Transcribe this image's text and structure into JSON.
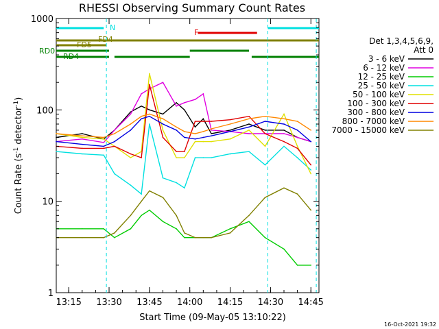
{
  "chart_data": {
    "type": "line",
    "title": "RHESSI Observing Summary Count Rates",
    "xlabel": "Start Time (09-May-05 13:10:22)",
    "ylabel_main": "Count Rate (s",
    "ylabel_sup1": "-1",
    "ylabel_mid": " detector",
    "ylabel_sup2": "-1",
    "ylabel_end": ")",
    "yscale": "log",
    "ylim": [
      1,
      1000
    ],
    "xlim": [
      "13:10:22",
      "14:48:00"
    ],
    "x_ticks": [
      "13:15",
      "13:30",
      "13:45",
      "14:00",
      "14:15",
      "14:30",
      "14:45"
    ],
    "y_ticks": [
      "1",
      "10",
      "100",
      "1000"
    ],
    "legend_header": [
      "Det 1,3,4,5,6,9,",
      "Att 0"
    ],
    "series": [
      {
        "name": "3 - 6 keV",
        "color": "#000000",
        "x": [
          "13:10",
          "13:20",
          "13:28",
          "13:32",
          "13:38",
          "13:42",
          "13:45",
          "13:50",
          "13:55",
          "13:58",
          "14:02",
          "14:05",
          "14:08",
          "14:15",
          "14:22",
          "14:28",
          "14:35",
          "14:40",
          "14:45"
        ],
        "y": [
          50,
          55,
          48,
          60,
          95,
          110,
          100,
          90,
          120,
          100,
          65,
          80,
          55,
          60,
          70,
          60,
          60,
          50,
          45
        ]
      },
      {
        "name": "6 - 12 keV",
        "color": "#e000e0",
        "x": [
          "13:10",
          "13:20",
          "13:28",
          "13:32",
          "13:38",
          "13:42",
          "13:45",
          "13:50",
          "13:55",
          "13:58",
          "14:02",
          "14:05",
          "14:08",
          "14:15",
          "14:22",
          "14:28",
          "14:35",
          "14:40",
          "14:45"
        ],
        "y": [
          45,
          48,
          44,
          60,
          90,
          150,
          170,
          200,
          110,
          120,
          130,
          150,
          60,
          58,
          55,
          55,
          55,
          50,
          45
        ]
      },
      {
        "name": "12 - 25 keV",
        "color": "#00cc00",
        "x": [
          "13:10",
          "13:20",
          "13:28",
          "13:32",
          "13:38",
          "13:42",
          "13:45",
          "13:50",
          "13:55",
          "13:58",
          "14:02",
          "14:05",
          "14:08",
          "14:15",
          "14:22",
          "14:28",
          "14:35",
          "14:40",
          "14:45"
        ],
        "y": [
          5,
          5,
          5,
          4,
          5,
          7,
          8,
          6,
          5,
          4,
          4,
          4,
          4,
          5,
          6,
          4,
          3,
          2,
          2
        ]
      },
      {
        "name": "25 - 50 keV",
        "color": "#00e0e0",
        "x": [
          "13:10",
          "13:20",
          "13:28",
          "13:32",
          "13:38",
          "13:42",
          "13:45",
          "13:50",
          "13:55",
          "13:58",
          "14:02",
          "14:05",
          "14:08",
          "14:15",
          "14:22",
          "14:28",
          "14:35",
          "14:40",
          "14:45"
        ],
        "y": [
          35,
          33,
          32,
          20,
          15,
          12,
          70,
          18,
          16,
          14,
          30,
          30,
          30,
          33,
          35,
          25,
          40,
          30,
          22
        ]
      },
      {
        "name": "50 - 100 keV",
        "color": "#e0e000",
        "x": [
          "13:10",
          "13:20",
          "13:28",
          "13:32",
          "13:38",
          "13:42",
          "13:45",
          "13:50",
          "13:55",
          "13:58",
          "14:02",
          "14:05",
          "14:08",
          "14:15",
          "14:22",
          "14:28",
          "14:35",
          "14:40",
          "14:45"
        ],
        "y": [
          55,
          50,
          48,
          40,
          30,
          35,
          250,
          60,
          30,
          30,
          45,
          45,
          45,
          48,
          60,
          40,
          90,
          40,
          20
        ]
      },
      {
        "name": "100 - 300 keV",
        "color": "#e00000",
        "x": [
          "13:10",
          "13:20",
          "13:28",
          "13:32",
          "13:38",
          "13:42",
          "13:45",
          "13:50",
          "13:55",
          "13:58",
          "14:02",
          "14:05",
          "14:08",
          "14:15",
          "14:22",
          "14:28",
          "14:35",
          "14:40",
          "14:45"
        ],
        "y": [
          40,
          38,
          38,
          40,
          33,
          30,
          190,
          50,
          35,
          35,
          75,
          75,
          75,
          78,
          85,
          55,
          45,
          38,
          25
        ]
      },
      {
        "name": "300 - 800 keV",
        "color": "#0000e0",
        "x": [
          "13:10",
          "13:20",
          "13:28",
          "13:32",
          "13:38",
          "13:42",
          "13:45",
          "13:50",
          "13:55",
          "13:58",
          "14:02",
          "14:05",
          "14:08",
          "14:15",
          "14:22",
          "14:28",
          "14:35",
          "14:40",
          "14:45"
        ],
        "y": [
          45,
          42,
          40,
          45,
          60,
          80,
          85,
          70,
          60,
          50,
          48,
          50,
          52,
          58,
          65,
          75,
          70,
          60,
          45
        ]
      },
      {
        "name": "800 - 7000 keV",
        "color": "#ff8800",
        "x": [
          "13:10",
          "13:20",
          "13:28",
          "13:32",
          "13:38",
          "13:42",
          "13:45",
          "13:50",
          "13:55",
          "13:58",
          "14:02",
          "14:05",
          "14:08",
          "14:15",
          "14:22",
          "14:28",
          "14:35",
          "14:40",
          "14:45"
        ],
        "y": [
          55,
          52,
          50,
          55,
          70,
          85,
          90,
          80,
          65,
          58,
          55,
          58,
          62,
          70,
          80,
          85,
          80,
          75,
          60
        ]
      },
      {
        "name": "7000 - 15000 keV",
        "color": "#808000",
        "x": [
          "13:10",
          "13:20",
          "13:28",
          "13:32",
          "13:38",
          "13:42",
          "13:45",
          "13:50",
          "13:55",
          "13:58",
          "14:02",
          "14:05",
          "14:08",
          "14:15",
          "14:22",
          "14:28",
          "14:35",
          "14:40",
          "14:45"
        ],
        "y": [
          4,
          4,
          4,
          4.5,
          7,
          10,
          13,
          11,
          7,
          4.5,
          4,
          4,
          4,
          4.5,
          7,
          11,
          14,
          12,
          8
        ]
      }
    ],
    "flag_bars": [
      {
        "label": "N",
        "color": "#00e0e0",
        "segments": [
          [
            "13:10",
            "13:28"
          ],
          [
            "14:29",
            "14:48"
          ]
        ]
      },
      {
        "label": "F",
        "color": "#e00000",
        "segments": [
          [
            "14:03",
            "14:25"
          ]
        ]
      },
      {
        "label": "FD4",
        "color": "#808000",
        "segments": [
          [
            "13:10",
            "14:48"
          ]
        ]
      },
      {
        "label": "FD5",
        "color": "#808000",
        "segments": [
          [
            "13:10",
            "13:29"
          ]
        ]
      },
      {
        "label": "RD0",
        "color": "#008000",
        "segments": [
          [
            "13:10",
            "13:30"
          ],
          [
            "14:00",
            "14:22"
          ]
        ]
      },
      {
        "label": "RD4",
        "color": "#008000",
        "segments": [
          [
            "13:10",
            "13:30"
          ],
          [
            "13:32",
            "14:00"
          ],
          [
            "14:23",
            "14:48"
          ]
        ]
      }
    ],
    "vertical_markers": [
      "13:29",
      "14:29",
      "14:47"
    ],
    "grid": false,
    "legend_position": "right",
    "timestamp": "16-Oct-2021 19:32"
  }
}
